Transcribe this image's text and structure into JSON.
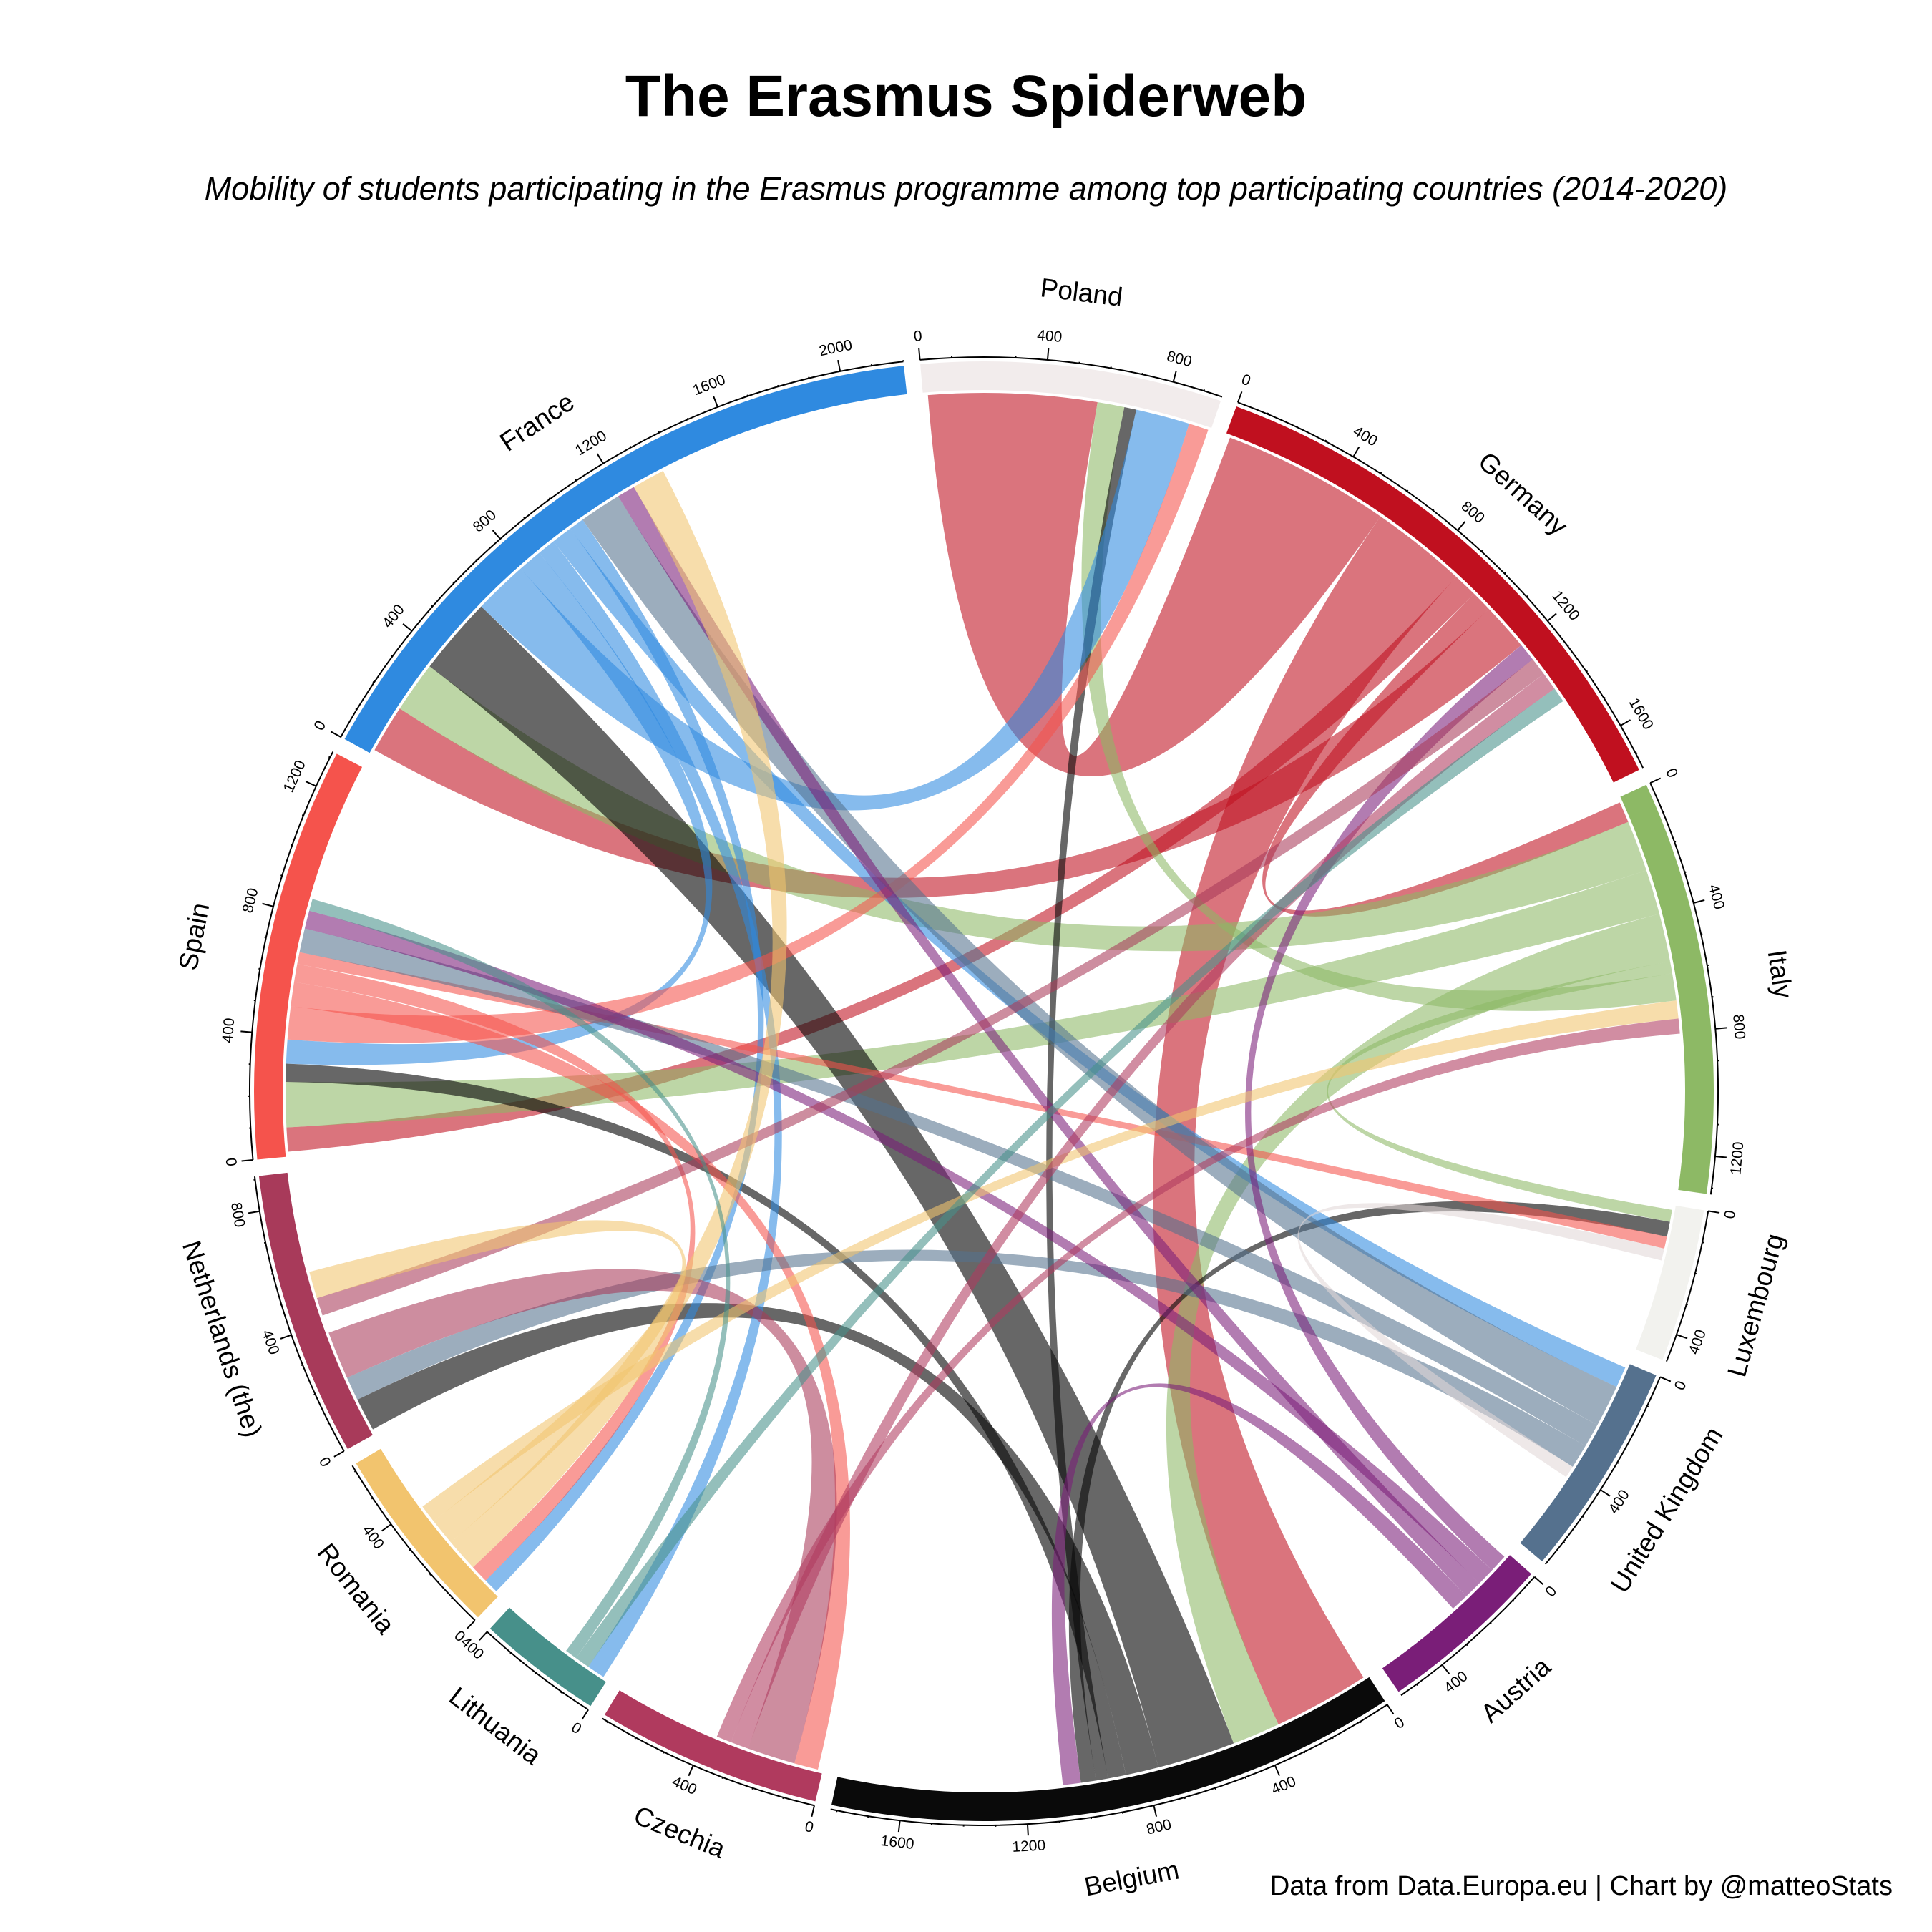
{
  "title": "The Erasmus Spiderweb",
  "subtitle": "Mobility of students participating in the Erasmus programme among top participating countries (2014-2020)",
  "caption": "Data from Data.Europa.eu | Chart by @matteoStats",
  "chart_data": {
    "type": "chord",
    "groups": [
      {
        "name": "Poland",
        "color": "#F2ECEC",
        "ticks": [
          "0",
          "400",
          "800"
        ]
      },
      {
        "name": "Germany",
        "color": "#C0101F",
        "ticks": [
          "0",
          "400",
          "800",
          "1200",
          "1600"
        ]
      },
      {
        "name": "Italy",
        "color": "#8DB965",
        "ticks": [
          "0",
          "400",
          "800",
          "1200"
        ]
      },
      {
        "name": "Luxembourg",
        "color": "#F2F2EE",
        "ticks": [
          "0",
          "400"
        ]
      },
      {
        "name": "United Kingdom",
        "color": "#55718E",
        "ticks": [
          "0",
          "400"
        ]
      },
      {
        "name": "Austria",
        "color": "#7A1E78",
        "ticks": [
          "0",
          "400"
        ]
      },
      {
        "name": "Belgium",
        "color": "#0A0A0A",
        "ticks": [
          "0",
          "400",
          "800",
          "1200",
          "1600"
        ]
      },
      {
        "name": "Czechia",
        "color": "#B03A5E",
        "ticks": [
          "0",
          "400"
        ]
      },
      {
        "name": "Lithuania",
        "color": "#47908A",
        "ticks": [
          "0",
          "400"
        ]
      },
      {
        "name": "Romania",
        "color": "#F2C46E",
        "ticks": [
          "0",
          "400"
        ]
      },
      {
        "name": "Netherlands (the)",
        "color": "#A83A5A",
        "ticks": [
          "0",
          "400",
          "800"
        ]
      },
      {
        "name": "Spain",
        "color": "#F5534C",
        "ticks": [
          "0",
          "400",
          "800",
          "1200"
        ]
      },
      {
        "name": "France",
        "color": "#2F8AE0",
        "ticks": [
          "0",
          "400",
          "800",
          "1200",
          "1600",
          "2000"
        ]
      }
    ],
    "totals": [
      960,
      1750,
      1320,
      490,
      690,
      560,
      1820,
      720,
      400,
      620,
      910,
      1320,
      2200
    ],
    "flows": [
      {
        "from": "Germany",
        "to": "Poland",
        "value": 560
      },
      {
        "from": "Germany",
        "to": "Belgium",
        "value": 320
      },
      {
        "from": "Germany",
        "to": "Spain",
        "value": 80
      },
      {
        "from": "Germany",
        "to": "Italy",
        "value": 70
      },
      {
        "from": "Germany",
        "to": "France",
        "value": 160
      },
      {
        "from": "Italy",
        "to": "France",
        "value": 170
      },
      {
        "from": "Italy",
        "to": "Spain",
        "value": 150
      },
      {
        "from": "Italy",
        "to": "Belgium",
        "value": 160
      },
      {
        "from": "Italy",
        "to": "Luxembourg",
        "value": 40
      },
      {
        "from": "Italy",
        "to": "Poland",
        "value": 90
      },
      {
        "from": "Belgium",
        "to": "France",
        "value": 260
      },
      {
        "from": "Belgium",
        "to": "Netherlands (the)",
        "value": 110
      },
      {
        "from": "Belgium",
        "to": "Spain",
        "value": 60
      },
      {
        "from": "Belgium",
        "to": "Poland",
        "value": 40
      },
      {
        "from": "Belgium",
        "to": "Luxembourg",
        "value": 50
      },
      {
        "from": "France",
        "to": "Poland",
        "value": 180
      },
      {
        "from": "France",
        "to": "Spain",
        "value": 80
      },
      {
        "from": "France",
        "to": "Lithuania",
        "value": 60
      },
      {
        "from": "France",
        "to": "United Kingdom",
        "value": 70
      },
      {
        "from": "France",
        "to": "Romania",
        "value": 50
      },
      {
        "from": "Spain",
        "to": "Poland",
        "value": 110
      },
      {
        "from": "Spain",
        "to": "Czechia",
        "value": 80
      },
      {
        "from": "Spain",
        "to": "Romania",
        "value": 60
      },
      {
        "from": "Spain",
        "to": "Luxembourg",
        "value": 40
      },
      {
        "from": "United Kingdom",
        "to": "France",
        "value": 140
      },
      {
        "from": "United Kingdom",
        "to": "Spain",
        "value": 80
      },
      {
        "from": "United Kingdom",
        "to": "Netherlands (the)",
        "value": 80
      },
      {
        "from": "Austria",
        "to": "Germany",
        "value": 60
      },
      {
        "from": "Austria",
        "to": "Spain",
        "value": 60
      },
      {
        "from": "Austria",
        "to": "France",
        "value": 60
      },
      {
        "from": "Austria",
        "to": "Belgium",
        "value": 60
      },
      {
        "from": "Netherlands (the)",
        "to": "Czechia",
        "value": 160
      },
      {
        "from": "Netherlands (the)",
        "to": "Poland",
        "value": 60
      },
      {
        "from": "Netherlands (the)",
        "to": "Germany",
        "value": 60
      },
      {
        "from": "Romania",
        "to": "France",
        "value": 110
      },
      {
        "from": "Romania",
        "to": "Netherlands (the)",
        "value": 90
      },
      {
        "from": "Romania",
        "to": "Italy",
        "value": 60
      },
      {
        "from": "Czechia",
        "to": "Germany",
        "value": 60
      },
      {
        "from": "Czechia",
        "to": "Italy",
        "value": 50
      },
      {
        "from": "Lithuania",
        "to": "Germany",
        "value": 50
      },
      {
        "from": "Lithuania",
        "to": "Spain",
        "value": 40
      },
      {
        "from": "Luxembourg",
        "to": "United Kingdom",
        "value": 40
      },
      {
        "from": "Poland",
        "to": "Italy",
        "value": 40
      }
    ],
    "legend": "none",
    "grid": false
  }
}
